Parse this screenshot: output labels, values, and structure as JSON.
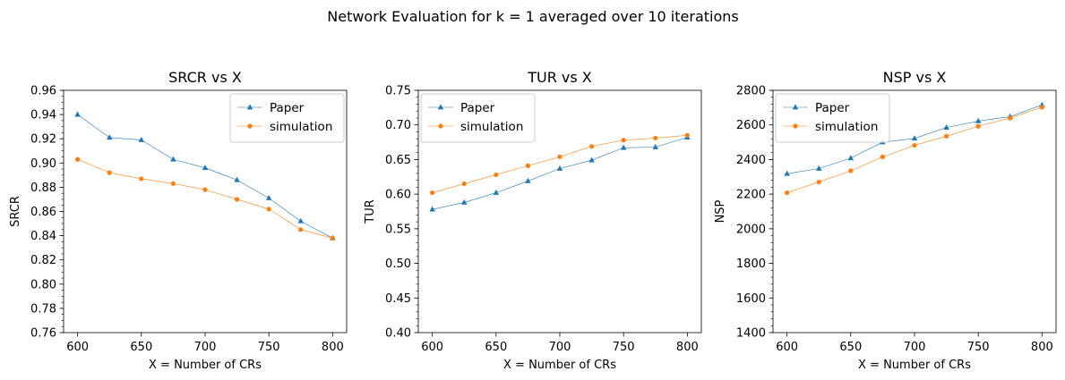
{
  "suptitle": "Network Evaluation for k = 1  averaged over 10 iterations",
  "colors": {
    "paper": "#1f77b4",
    "simulation": "#ff7f0e",
    "axes": "#000000"
  },
  "chart_data": [
    {
      "type": "line",
      "title": "SRCR vs X",
      "xlabel": "X = Number of CRs",
      "ylabel": "SRCR",
      "x": [
        600,
        625,
        650,
        675,
        700,
        725,
        750,
        775,
        800
      ],
      "xlim": [
        589,
        811
      ],
      "xticks": [
        600,
        650,
        700,
        750,
        800
      ],
      "ylim": [
        0.76,
        0.96
      ],
      "yticks": [
        0.76,
        0.78,
        0.8,
        0.82,
        0.84,
        0.86,
        0.88,
        0.9,
        0.92,
        0.94,
        0.96
      ],
      "ytick_labels": [
        "0.76",
        "0.78",
        "0.80",
        "0.82",
        "0.84",
        "0.86",
        "0.88",
        "0.90",
        "0.92",
        "0.94",
        "0.96"
      ],
      "yminor_step": 0.005,
      "legend": "top-right",
      "series": [
        {
          "name": "Paper",
          "marker": "triangle",
          "color": "#1f77b4",
          "values": [
            0.94,
            0.921,
            0.919,
            0.903,
            0.896,
            0.886,
            0.871,
            0.852,
            0.838
          ]
        },
        {
          "name": "simulation",
          "marker": "circle",
          "color": "#ff7f0e",
          "values": [
            0.903,
            0.892,
            0.887,
            0.883,
            0.878,
            0.87,
            0.862,
            0.845,
            0.838
          ]
        }
      ]
    },
    {
      "type": "line",
      "title": "TUR vs X",
      "xlabel": "X = Number of CRs",
      "ylabel": "TUR",
      "x": [
        600,
        625,
        650,
        675,
        700,
        725,
        750,
        775,
        800
      ],
      "xlim": [
        589,
        811
      ],
      "xticks": [
        600,
        650,
        700,
        750,
        800
      ],
      "ylim": [
        0.4,
        0.75
      ],
      "yticks": [
        0.4,
        0.45,
        0.5,
        0.55,
        0.6,
        0.65,
        0.7,
        0.75
      ],
      "ytick_labels": [
        "0.40",
        "0.45",
        "0.50",
        "0.55",
        "0.60",
        "0.65",
        "0.70",
        "0.75"
      ],
      "yminor_step": 0.01,
      "legend": "top-left",
      "series": [
        {
          "name": "Paper",
          "marker": "triangle",
          "color": "#1f77b4",
          "values": [
            0.578,
            0.588,
            0.602,
            0.619,
            0.637,
            0.649,
            0.667,
            0.668,
            0.682
          ]
        },
        {
          "name": "simulation",
          "marker": "circle",
          "color": "#ff7f0e",
          "values": [
            0.602,
            0.615,
            0.628,
            0.641,
            0.654,
            0.669,
            0.678,
            0.681,
            0.685
          ]
        }
      ]
    },
    {
      "type": "line",
      "title": "NSP vs X",
      "xlabel": "X = Number of CRs",
      "ylabel": "NSP",
      "x": [
        600,
        625,
        650,
        675,
        700,
        725,
        750,
        775,
        800
      ],
      "xlim": [
        589,
        811
      ],
      "xticks": [
        600,
        650,
        700,
        750,
        800
      ],
      "ylim": [
        1400,
        2800
      ],
      "yticks": [
        1400,
        1600,
        1800,
        2000,
        2200,
        2400,
        2600,
        2800
      ],
      "ytick_labels": [
        "1400",
        "1600",
        "1800",
        "2000",
        "2200",
        "2400",
        "2600",
        "2800"
      ],
      "yminor_step": 40,
      "legend": "top-left",
      "series": [
        {
          "name": "Paper",
          "marker": "triangle",
          "color": "#1f77b4",
          "values": [
            2318,
            2348,
            2408,
            2500,
            2522,
            2585,
            2622,
            2648,
            2715
          ]
        },
        {
          "name": "simulation",
          "marker": "circle",
          "color": "#ff7f0e",
          "values": [
            2208,
            2270,
            2335,
            2415,
            2482,
            2535,
            2592,
            2640,
            2702
          ]
        }
      ]
    }
  ]
}
